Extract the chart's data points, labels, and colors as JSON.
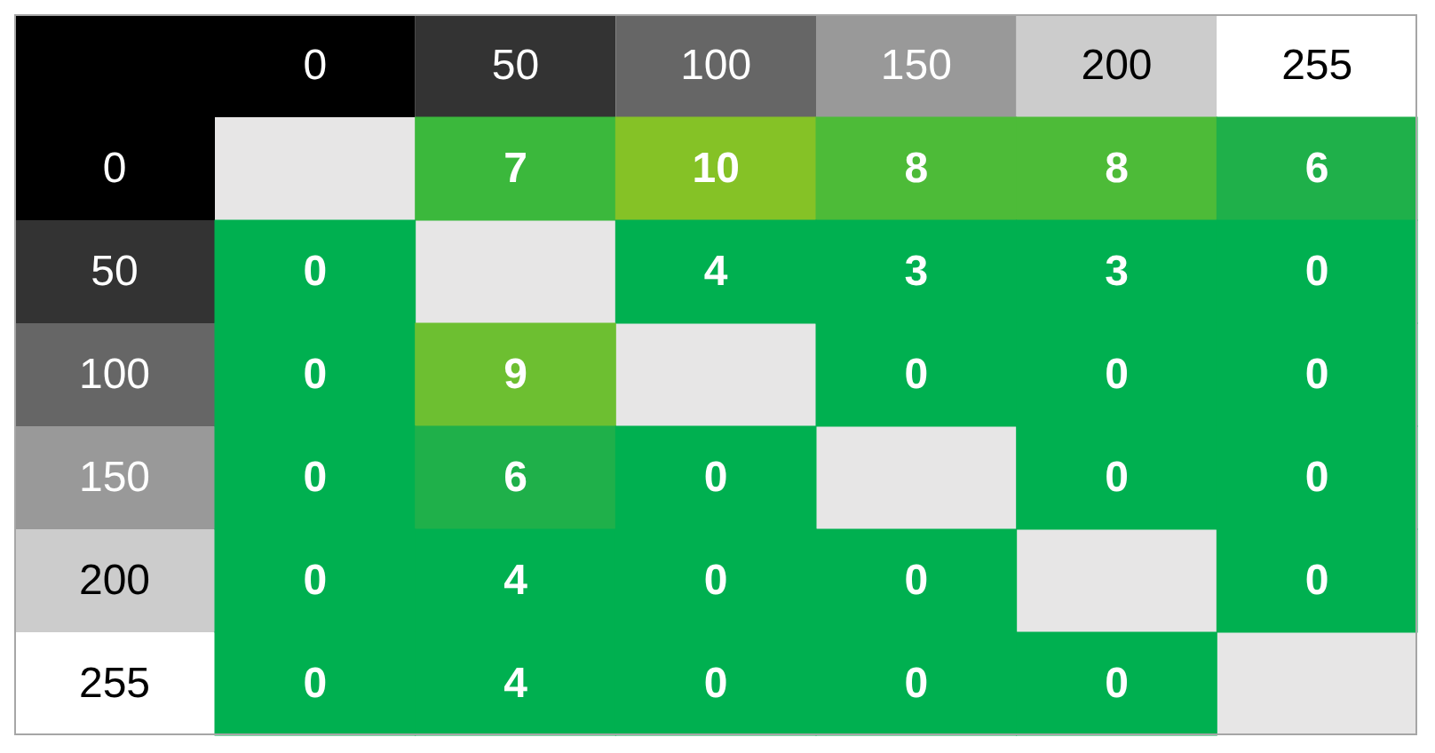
{
  "chart_data": {
    "type": "heatmap",
    "categories": [
      "0",
      "50",
      "100",
      "150",
      "200",
      "255"
    ],
    "y_categories": [
      "0",
      "50",
      "100",
      "150",
      "200",
      "255"
    ],
    "cells": [
      [
        null,
        7,
        10,
        8,
        8,
        6
      ],
      [
        0,
        null,
        4,
        3,
        3,
        0
      ],
      [
        0,
        9,
        null,
        0,
        0,
        0
      ],
      [
        0,
        6,
        0,
        null,
        0,
        0
      ],
      [
        0,
        4,
        0,
        0,
        null,
        0
      ],
      [
        0,
        4,
        0,
        0,
        0,
        null
      ]
    ],
    "colors": [
      [
        null,
        "#3bb83c",
        "#85c226",
        "#4dbb38",
        "#4dbb38",
        "#1fb04a"
      ],
      [
        "#00b050",
        null,
        "#00b050",
        "#00b050",
        "#00b050",
        "#00b050"
      ],
      [
        "#00b050",
        "#6dbf31",
        null,
        "#00b050",
        "#00b050",
        "#00b050"
      ],
      [
        "#00b050",
        "#1fb04a",
        "#00b050",
        null,
        "#00b050",
        "#00b050"
      ],
      [
        "#00b050",
        "#00b050",
        "#00b050",
        "#00b050",
        null,
        "#00b050"
      ],
      [
        "#00b050",
        "#00b050",
        "#00b050",
        "#00b050",
        "#00b050",
        null
      ]
    ],
    "data_labels": true
  }
}
